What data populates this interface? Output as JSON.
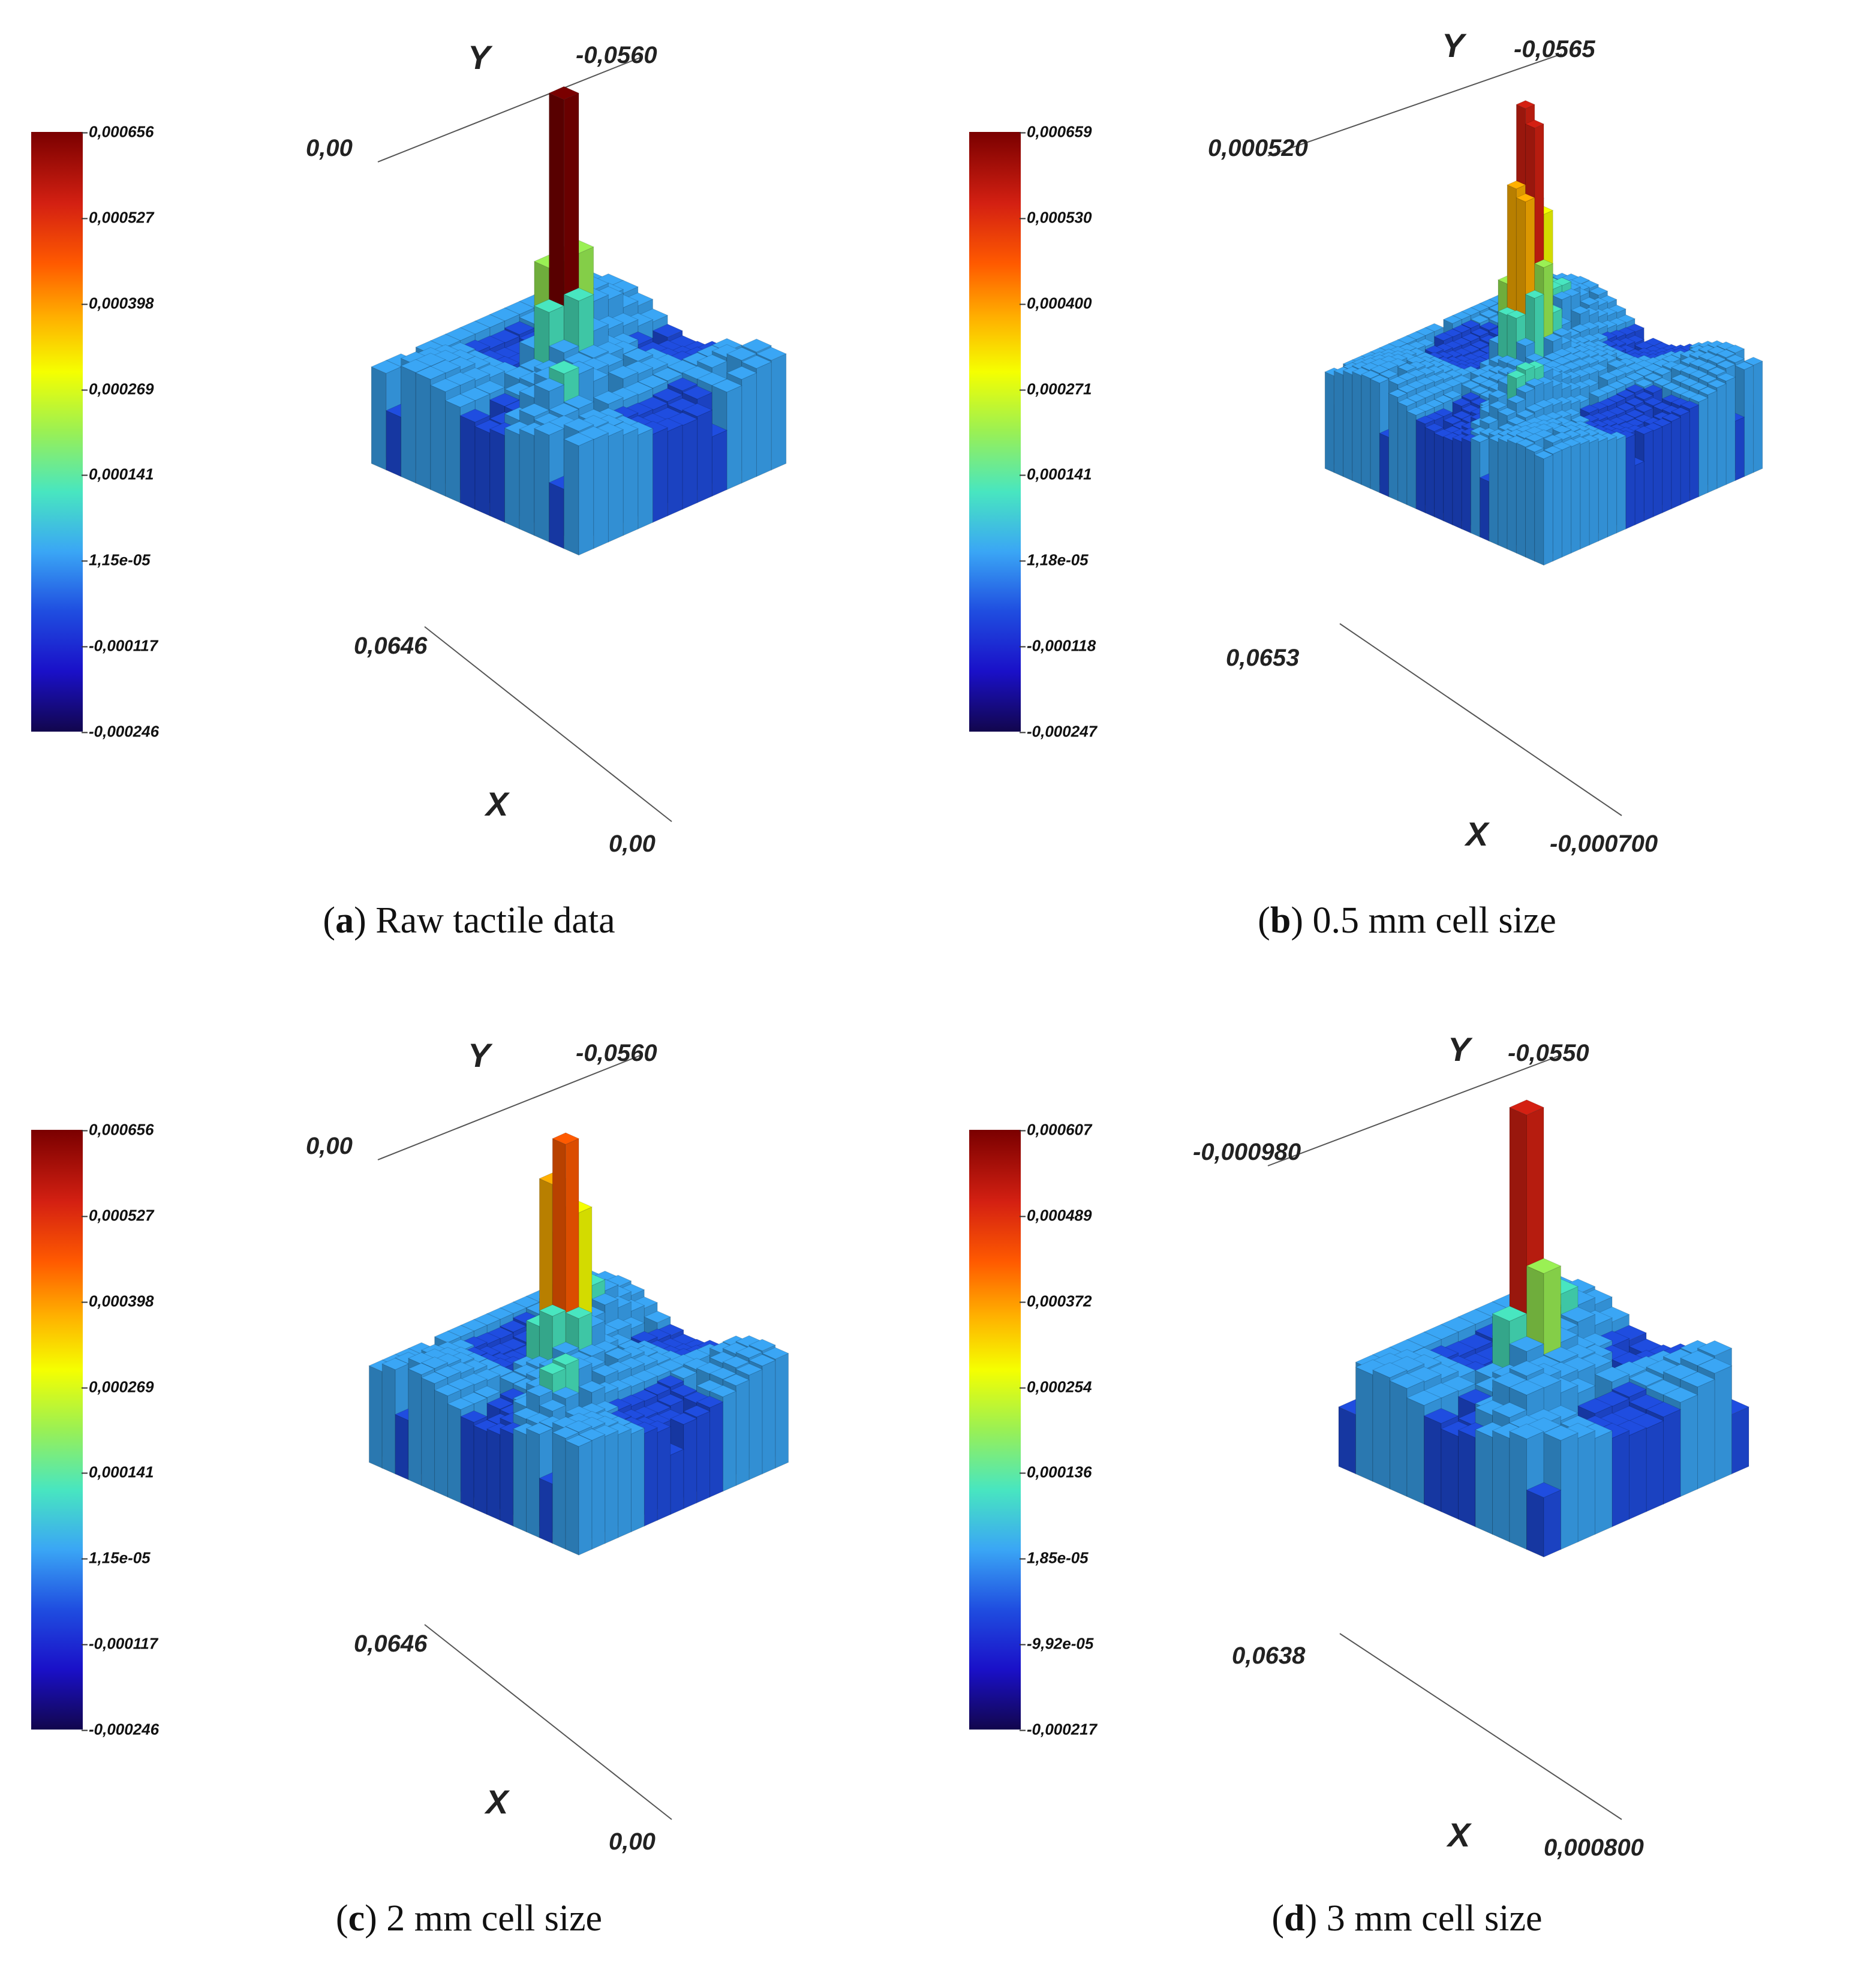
{
  "colormap": [
    "#7a0000",
    "#d42012",
    "#ff5a00",
    "#ffb000",
    "#f5ff00",
    "#9af054",
    "#48e6c0",
    "#3aa6f5",
    "#1f4de0",
    "#1a10c8",
    "#12064d"
  ],
  "panels": [
    {
      "id": "a",
      "caption_letter": "a",
      "caption_text": "Raw tactile data",
      "colorbar_ticks": [
        "0,000656",
        "0,000527",
        "0,000398",
        "0,000269",
        "0,000141",
        "1,15e-05",
        "-0,000117",
        "-0,000246"
      ],
      "axis": {
        "y_label": "Y",
        "y_start": "0,00",
        "y_end": "-0,0560",
        "x_label": "X",
        "x_start": "0,0646",
        "x_end": "0,00"
      }
    },
    {
      "id": "b",
      "caption_letter": "b",
      "caption_text": "0.5 mm cell size",
      "colorbar_ticks": [
        "0,000659",
        "0,000530",
        "0,000400",
        "0,000271",
        "0,000141",
        "1,18e-05",
        "-0,000118",
        "-0,000247"
      ],
      "axis": {
        "y_label": "Y",
        "y_start": "0,000520",
        "y_end": "-0,0565",
        "x_label": "X",
        "x_start": "0,0653",
        "x_end": "-0,000700"
      }
    },
    {
      "id": "c",
      "caption_letter": "c",
      "caption_text": "2 mm cell size",
      "colorbar_ticks": [
        "0,000656",
        "0,000527",
        "0,000398",
        "0,000269",
        "0,000141",
        "1,15e-05",
        "-0,000117",
        "-0,000246"
      ],
      "axis": {
        "y_label": "Y",
        "y_start": "0,00",
        "y_end": "-0,0560",
        "x_label": "X",
        "x_start": "0,0646",
        "x_end": "0,00"
      }
    },
    {
      "id": "d",
      "caption_letter": "d",
      "caption_text": "3 mm cell size",
      "colorbar_ticks": [
        "0,000607",
        "0,000489",
        "0,000372",
        "0,000254",
        "0,000136",
        "1,85e-05",
        "-9,92e-05",
        "-0,000217"
      ],
      "axis": {
        "y_label": "Y",
        "y_start": "-0,000980",
        "y_end": "-0,0550",
        "x_label": "X",
        "x_start": "0,0638",
        "x_end": "0,000800"
      }
    }
  ]
}
